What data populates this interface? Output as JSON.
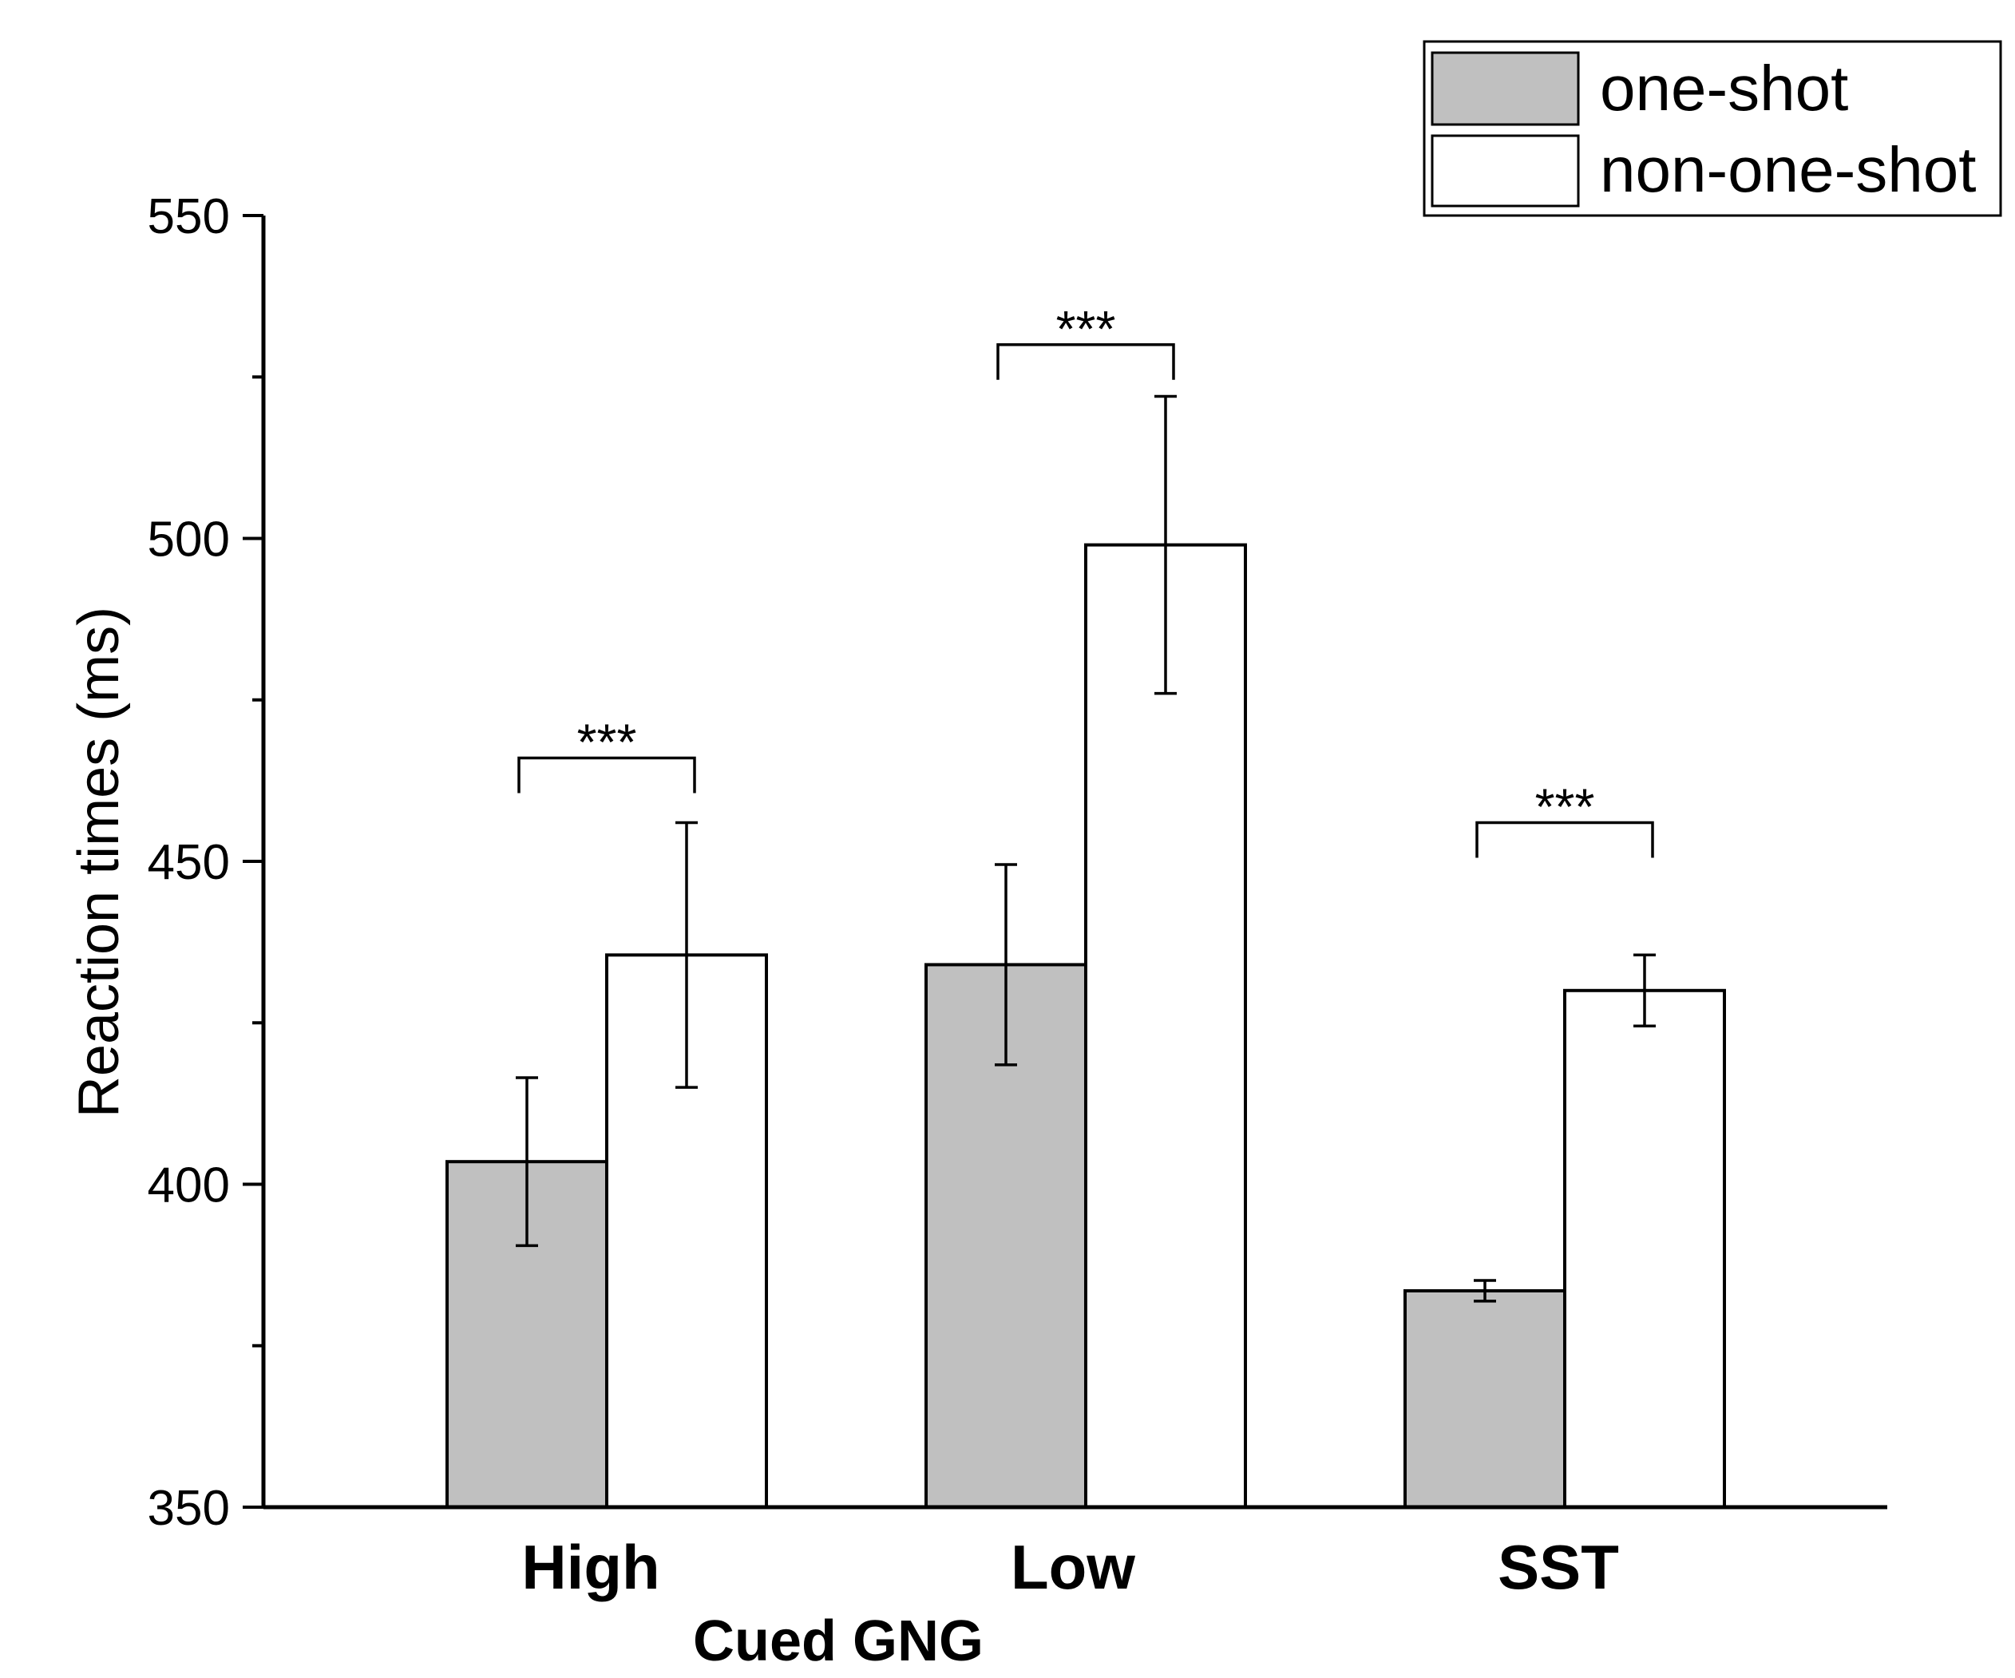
{
  "chart_data": {
    "type": "bar",
    "title": "",
    "xlabel": "Cued GNG",
    "ylabel": "Reaction times (ms)",
    "ylim": [
      350,
      550
    ],
    "yticks": [
      350,
      400,
      450,
      500,
      550
    ],
    "grid": false,
    "legend_position": "top-right",
    "categories": [
      "High",
      "Low",
      "SST"
    ],
    "series": [
      {
        "name": "one-shot",
        "color": "#c0c0c0",
        "values": [
          403.5,
          434,
          383.5
        ],
        "errors": [
          13,
          15.5,
          1.6
        ]
      },
      {
        "name": "non-one-shot",
        "color": "#ffffff",
        "values": [
          435.5,
          499,
          430
        ],
        "errors": [
          20.5,
          23,
          5.5
        ]
      }
    ],
    "significance": [
      {
        "category": "High",
        "label": "***",
        "bracket_y": 466
      },
      {
        "category": "Low",
        "label": "***",
        "bracket_y": 530
      },
      {
        "category": "SST",
        "label": "***",
        "bracket_y": 456
      }
    ]
  }
}
